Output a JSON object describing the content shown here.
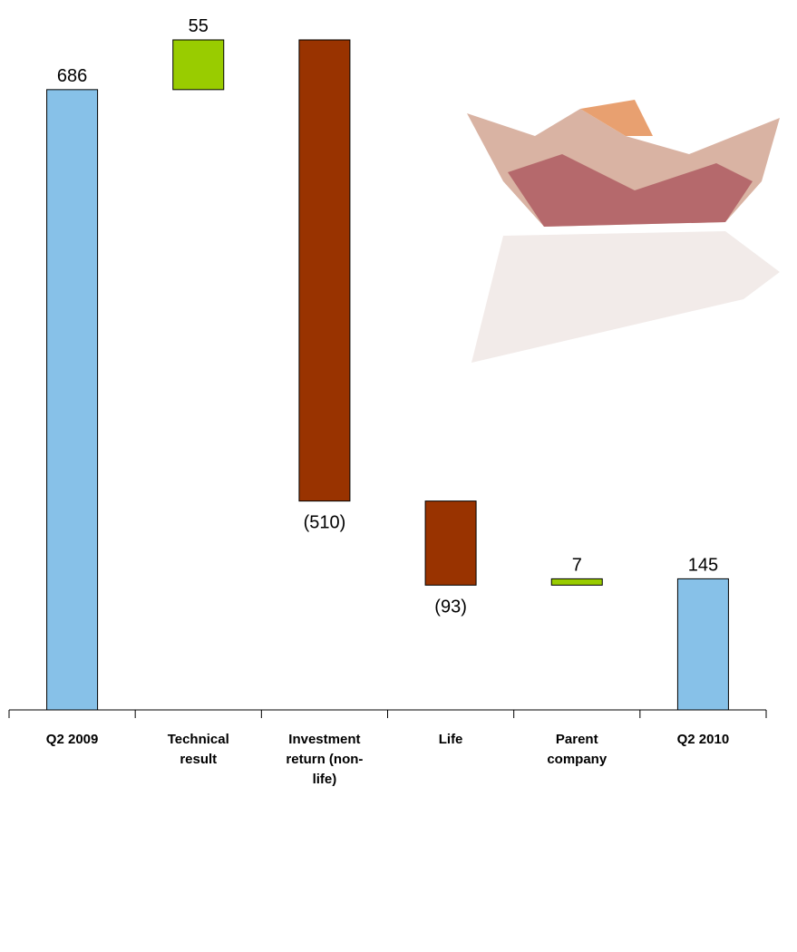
{
  "chart_data": {
    "type": "waterfall",
    "categories": [
      "Q2 2009",
      "Technical result",
      "Investment return (non-life)",
      "Life",
      "Parent company",
      "Q2 2010"
    ],
    "values": [
      686,
      55,
      -510,
      -93,
      7,
      145
    ],
    "value_labels": [
      "686",
      "55",
      "(510)",
      "(93)",
      "7",
      "145"
    ],
    "colors": [
      "#87c1e8",
      "#99cc00",
      "#993300",
      "#993300",
      "#99cc00",
      "#87c1e8"
    ]
  }
}
